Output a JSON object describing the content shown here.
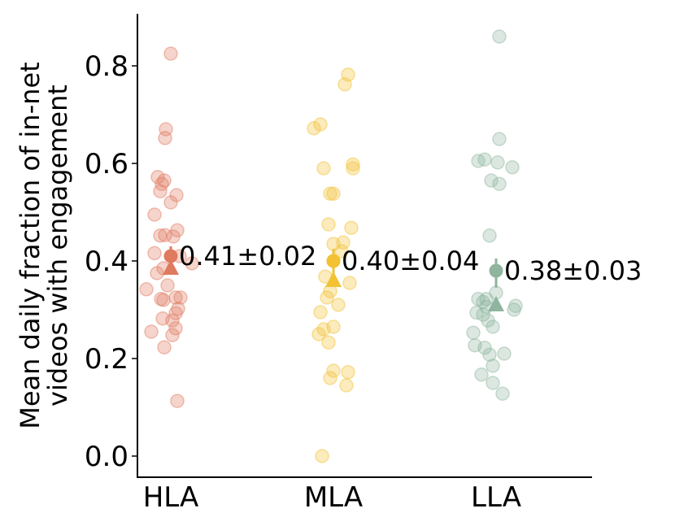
{
  "chart_data": {
    "type": "scatter",
    "title": "",
    "xlabel": "",
    "ylabel_lines": [
      "Mean daily fraction of in-net",
      "videos with engagement"
    ],
    "ylim": [
      -0.04,
      0.9
    ],
    "yticks": [
      0.0,
      0.2,
      0.4,
      0.6,
      0.8
    ],
    "ytick_labels": [
      "0.0",
      "0.2",
      "0.4",
      "0.6",
      "0.8"
    ],
    "categories": [
      "HLA",
      "MLA",
      "LLA"
    ],
    "grid": false,
    "series": [
      {
        "category": "HLA",
        "color": "#e07a5f",
        "mean": 0.41,
        "ci": [
          0.385,
          0.43
        ],
        "median": 0.385,
        "annotation": "0.41±0.02",
        "points": [
          [
            0.0,
            0.825
          ],
          [
            -0.03,
            0.67
          ],
          [
            -0.035,
            0.652
          ],
          [
            -0.08,
            0.572
          ],
          [
            -0.04,
            0.565
          ],
          [
            -0.055,
            0.558
          ],
          [
            -0.065,
            0.543
          ],
          [
            0.035,
            0.535
          ],
          [
            0.0,
            0.52
          ],
          [
            -0.1,
            0.495
          ],
          [
            0.04,
            0.463
          ],
          [
            -0.035,
            0.453
          ],
          [
            -0.065,
            0.452
          ],
          [
            0.015,
            0.45
          ],
          [
            -0.1,
            0.416
          ],
          [
            0.055,
            0.41
          ],
          [
            0.13,
            0.395
          ],
          [
            -0.045,
            0.385
          ],
          [
            -0.085,
            0.375
          ],
          [
            -0.02,
            0.35
          ],
          [
            -0.15,
            0.342
          ],
          [
            0.03,
            0.325
          ],
          [
            0.06,
            0.325
          ],
          [
            -0.06,
            0.322
          ],
          [
            -0.045,
            0.32
          ],
          [
            0.045,
            0.302
          ],
          [
            0.03,
            0.293
          ],
          [
            0.01,
            0.278
          ],
          [
            -0.05,
            0.282
          ],
          [
            0.03,
            0.262
          ],
          [
            -0.12,
            0.255
          ],
          [
            0.01,
            0.248
          ],
          [
            -0.04,
            0.223
          ],
          [
            0.04,
            0.113
          ]
        ]
      },
      {
        "category": "MLA",
        "color": "#f2c233",
        "mean": 0.4,
        "ci": [
          0.37,
          0.425
        ],
        "median": 0.36,
        "annotation": "0.40±0.04",
        "points": [
          [
            0.09,
            0.782
          ],
          [
            0.07,
            0.762
          ],
          [
            -0.08,
            0.68
          ],
          [
            -0.12,
            0.672
          ],
          [
            -0.06,
            0.59
          ],
          [
            0.12,
            0.598
          ],
          [
            0.12,
            0.59
          ],
          [
            -0.02,
            0.538
          ],
          [
            0.0,
            0.538
          ],
          [
            -0.03,
            0.475
          ],
          [
            0.11,
            0.468
          ],
          [
            0.0,
            0.435
          ],
          [
            0.06,
            0.438
          ],
          [
            0.05,
            0.42
          ],
          [
            0.0,
            0.4
          ],
          [
            -0.05,
            0.368
          ],
          [
            0.1,
            0.355
          ],
          [
            -0.02,
            0.338
          ],
          [
            -0.04,
            0.325
          ],
          [
            0.03,
            0.31
          ],
          [
            -0.08,
            0.295
          ],
          [
            -0.06,
            0.26
          ],
          [
            0.0,
            0.265
          ],
          [
            -0.09,
            0.25
          ],
          [
            -0.03,
            0.233
          ],
          [
            0.0,
            0.175
          ],
          [
            0.09,
            0.172
          ],
          [
            -0.02,
            0.16
          ],
          [
            0.08,
            0.145
          ],
          [
            -0.07,
            0.0
          ]
        ]
      },
      {
        "category": "LLA",
        "color": "#8fb59e",
        "mean": 0.38,
        "ci": [
          0.345,
          0.405
        ],
        "median": 0.31,
        "annotation": "0.38±0.03",
        "points": [
          [
            0.02,
            0.86
          ],
          [
            0.02,
            0.65
          ],
          [
            -0.11,
            0.605
          ],
          [
            -0.07,
            0.608
          ],
          [
            0.01,
            0.602
          ],
          [
            0.1,
            0.592
          ],
          [
            -0.03,
            0.565
          ],
          [
            0.02,
            0.558
          ],
          [
            -0.04,
            0.452
          ],
          [
            -0.11,
            0.322
          ],
          [
            -0.06,
            0.322
          ],
          [
            0.0,
            0.335
          ],
          [
            -0.08,
            0.316
          ],
          [
            0.12,
            0.308
          ],
          [
            -0.06,
            0.306
          ],
          [
            0.11,
            0.3
          ],
          [
            -0.12,
            0.294
          ],
          [
            -0.08,
            0.29
          ],
          [
            -0.05,
            0.278
          ],
          [
            -0.02,
            0.265
          ],
          [
            -0.14,
            0.253
          ],
          [
            -0.13,
            0.227
          ],
          [
            -0.07,
            0.222
          ],
          [
            0.05,
            0.21
          ],
          [
            -0.04,
            0.208
          ],
          [
            -0.02,
            0.185
          ],
          [
            -0.09,
            0.167
          ],
          [
            -0.02,
            0.15
          ],
          [
            0.04,
            0.128
          ]
        ]
      }
    ]
  }
}
